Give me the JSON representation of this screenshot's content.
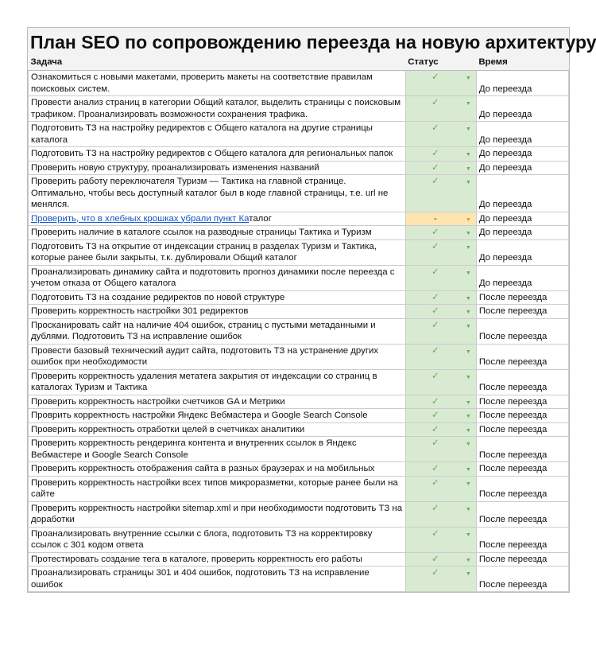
{
  "title": "План SEO по сопровождению переезда на новую архитектуру",
  "headers": {
    "task": "Задача",
    "status": "Статус",
    "time": "Время"
  },
  "colors": {
    "done": "#d9ead3",
    "pending": "#fce5b0",
    "link": "#1155cc"
  },
  "rows": [
    {
      "task": "Ознакомиться с новыми макетами, проверить макеты на соответствие правилам поисковых систем.",
      "status": "✓",
      "time": "До переезда"
    },
    {
      "task": "Провести анализ страниц в категории Общий каталог, выделить страницы с поисковым трафиком. Проанализировать возможности сохранения трафика.",
      "status": "✓",
      "time": "До переезда"
    },
    {
      "task": "Подготовить ТЗ на настройку редиректов с Общего каталога на другие страницы каталога",
      "status": "✓",
      "time": "До переезда"
    },
    {
      "task": "Подготовить ТЗ на настройку редиректов с Общего каталога для региональных папок",
      "status": "✓",
      "time": "До переезда"
    },
    {
      "task": "Проверить новую структуру, проанализировать изменения названий",
      "status": "✓",
      "time": "До переезда"
    },
    {
      "task": "Проверить работу переключателя Туризм — Тактика на главной странице. Оптимально, чтобы весь доступный каталог был в коде главной страницы, т.е. url не менялся.",
      "status": "✓",
      "time": "До переезда"
    },
    {
      "task": "",
      "link": "Проверить, что в хлебных крошках убрали пункт Ка",
      "link_rest": "талог",
      "status": "-",
      "time": "До переезда",
      "pending": true
    },
    {
      "task": "Проверить наличие в каталоге ссылок на разводные страницы Тактика и Туризм",
      "status": "✓",
      "time": "До переезда"
    },
    {
      "task": "Подготовить ТЗ на открытие от индексации страниц в разделах Туризм и Тактика, которые ранее были закрыты, т.к. дублировали Общий каталог",
      "status": "✓",
      "time": "До переезда"
    },
    {
      "task": "Проанализировать динамику сайта и подготовить прогноз динамики после переезда с учетом отказа от Общего каталога",
      "status": "✓",
      "time": "До переезда"
    },
    {
      "task": "Подготовить ТЗ на создание редиректов по новой структуре",
      "status": "✓",
      "time": "После переезда"
    },
    {
      "task": "Проверить корректность настройки 301 редиректов",
      "status": "✓",
      "time": "После переезда"
    },
    {
      "task": "Просканировать сайт на наличие 404 ошибок, страниц с пустыми метаданными и дублями. Подготовить ТЗ на исправление ошибок",
      "status": "✓",
      "time": "После переезда"
    },
    {
      "task": "Провести базовый технический аудит сайта, подготовить ТЗ на устранение других ошибок при необходимости",
      "status": "✓",
      "time": "После переезда"
    },
    {
      "task": "Проверить корректность удаления метатега закрытия от индексации со страниц в каталогах Туризм и Тактика",
      "status": "✓",
      "time": "После переезда"
    },
    {
      "task": "Проверить корректность настройки счетчиков GA и Метрики",
      "status": "✓",
      "time": "После переезда"
    },
    {
      "task": "Проврить корректность настройки Яндекс Вебмастера и Google Search Console",
      "status": "✓",
      "time": "После переезда"
    },
    {
      "task": "Проверить корректность отработки целей в счетчиках аналитики",
      "status": "✓",
      "time": "После переезда"
    },
    {
      "task": "Проверить корректность рендеринга контента и внутренних ссылок в Яндекс Вебмастере и Google Search Console",
      "status": "✓",
      "time": "После переезда"
    },
    {
      "task": "Проверить корректность отображения сайта в разных браузерах и на мобильных",
      "status": "✓",
      "time": "После переезда"
    },
    {
      "task": "Проверить корректность настройки всех типов микроразметки, которые ранее были на сайте",
      "status": "✓",
      "time": "После переезда"
    },
    {
      "task": "Проверить корректность настройки sitemap.xml и при необходимости подготовить ТЗ на доработки",
      "status": "✓",
      "time": "После переезда"
    },
    {
      "task": "Проанализировать внутренние ссылки с блога, подготовить ТЗ на корректировку ссылок с 301 кодом ответа",
      "status": "✓",
      "time": "После переезда"
    },
    {
      "task": "Протестировать создание тега в каталоге, проверить корректность его работы",
      "status": "✓",
      "time": "После переезда"
    },
    {
      "task": "Проанализировать страницы 301 и 404 ошибок, подготовить ТЗ на исправление ошибок",
      "status": "✓",
      "time": "После переезда"
    }
  ]
}
